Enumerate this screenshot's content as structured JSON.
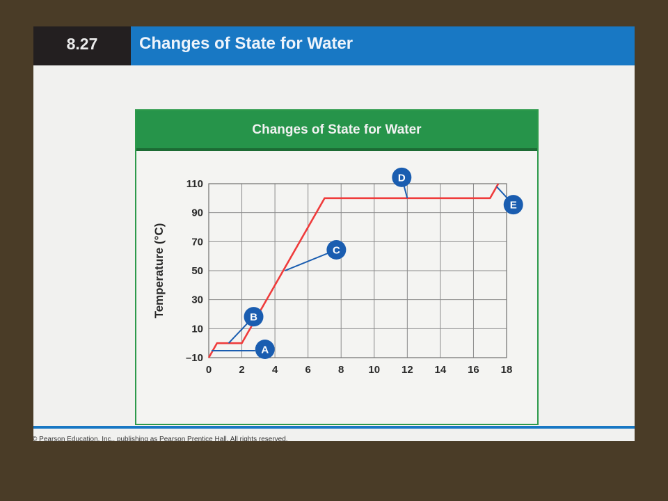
{
  "slide": {
    "number": "8.27",
    "title": "Changes of State for Water",
    "footer": "© Pearson Education, Inc., publishing as Pearson Prentice Hall. All rights reserved."
  },
  "chart_data": {
    "type": "line",
    "title": "Changes of State for Water",
    "xlabel": "",
    "ylabel": "Temperature (°C)",
    "xlim": [
      0,
      18
    ],
    "ylim": [
      -10,
      110
    ],
    "x_ticks": [
      "0",
      "2",
      "4",
      "6",
      "8",
      "10",
      "12",
      "14",
      "16",
      "18"
    ],
    "y_ticks": [
      "110",
      "90",
      "70",
      "50",
      "30",
      "10",
      "–10"
    ],
    "grid": true,
    "series": [
      {
        "color": "#ef3b3b",
        "x": [
          0,
          0.5,
          2,
          7,
          17,
          17.5
        ],
        "y": [
          -10,
          0,
          0,
          100,
          100,
          110
        ]
      }
    ],
    "annotations": [
      {
        "label": "A",
        "x": 0.2,
        "y": -10
      },
      {
        "label": "B",
        "x": 1.2,
        "y": 0
      },
      {
        "label": "C",
        "x": 4.6,
        "y": 50
      },
      {
        "label": "D",
        "x": 12,
        "y": 100
      },
      {
        "label": "E",
        "x": 17.4,
        "y": 108
      }
    ],
    "marker_color": "#1a5db0"
  }
}
